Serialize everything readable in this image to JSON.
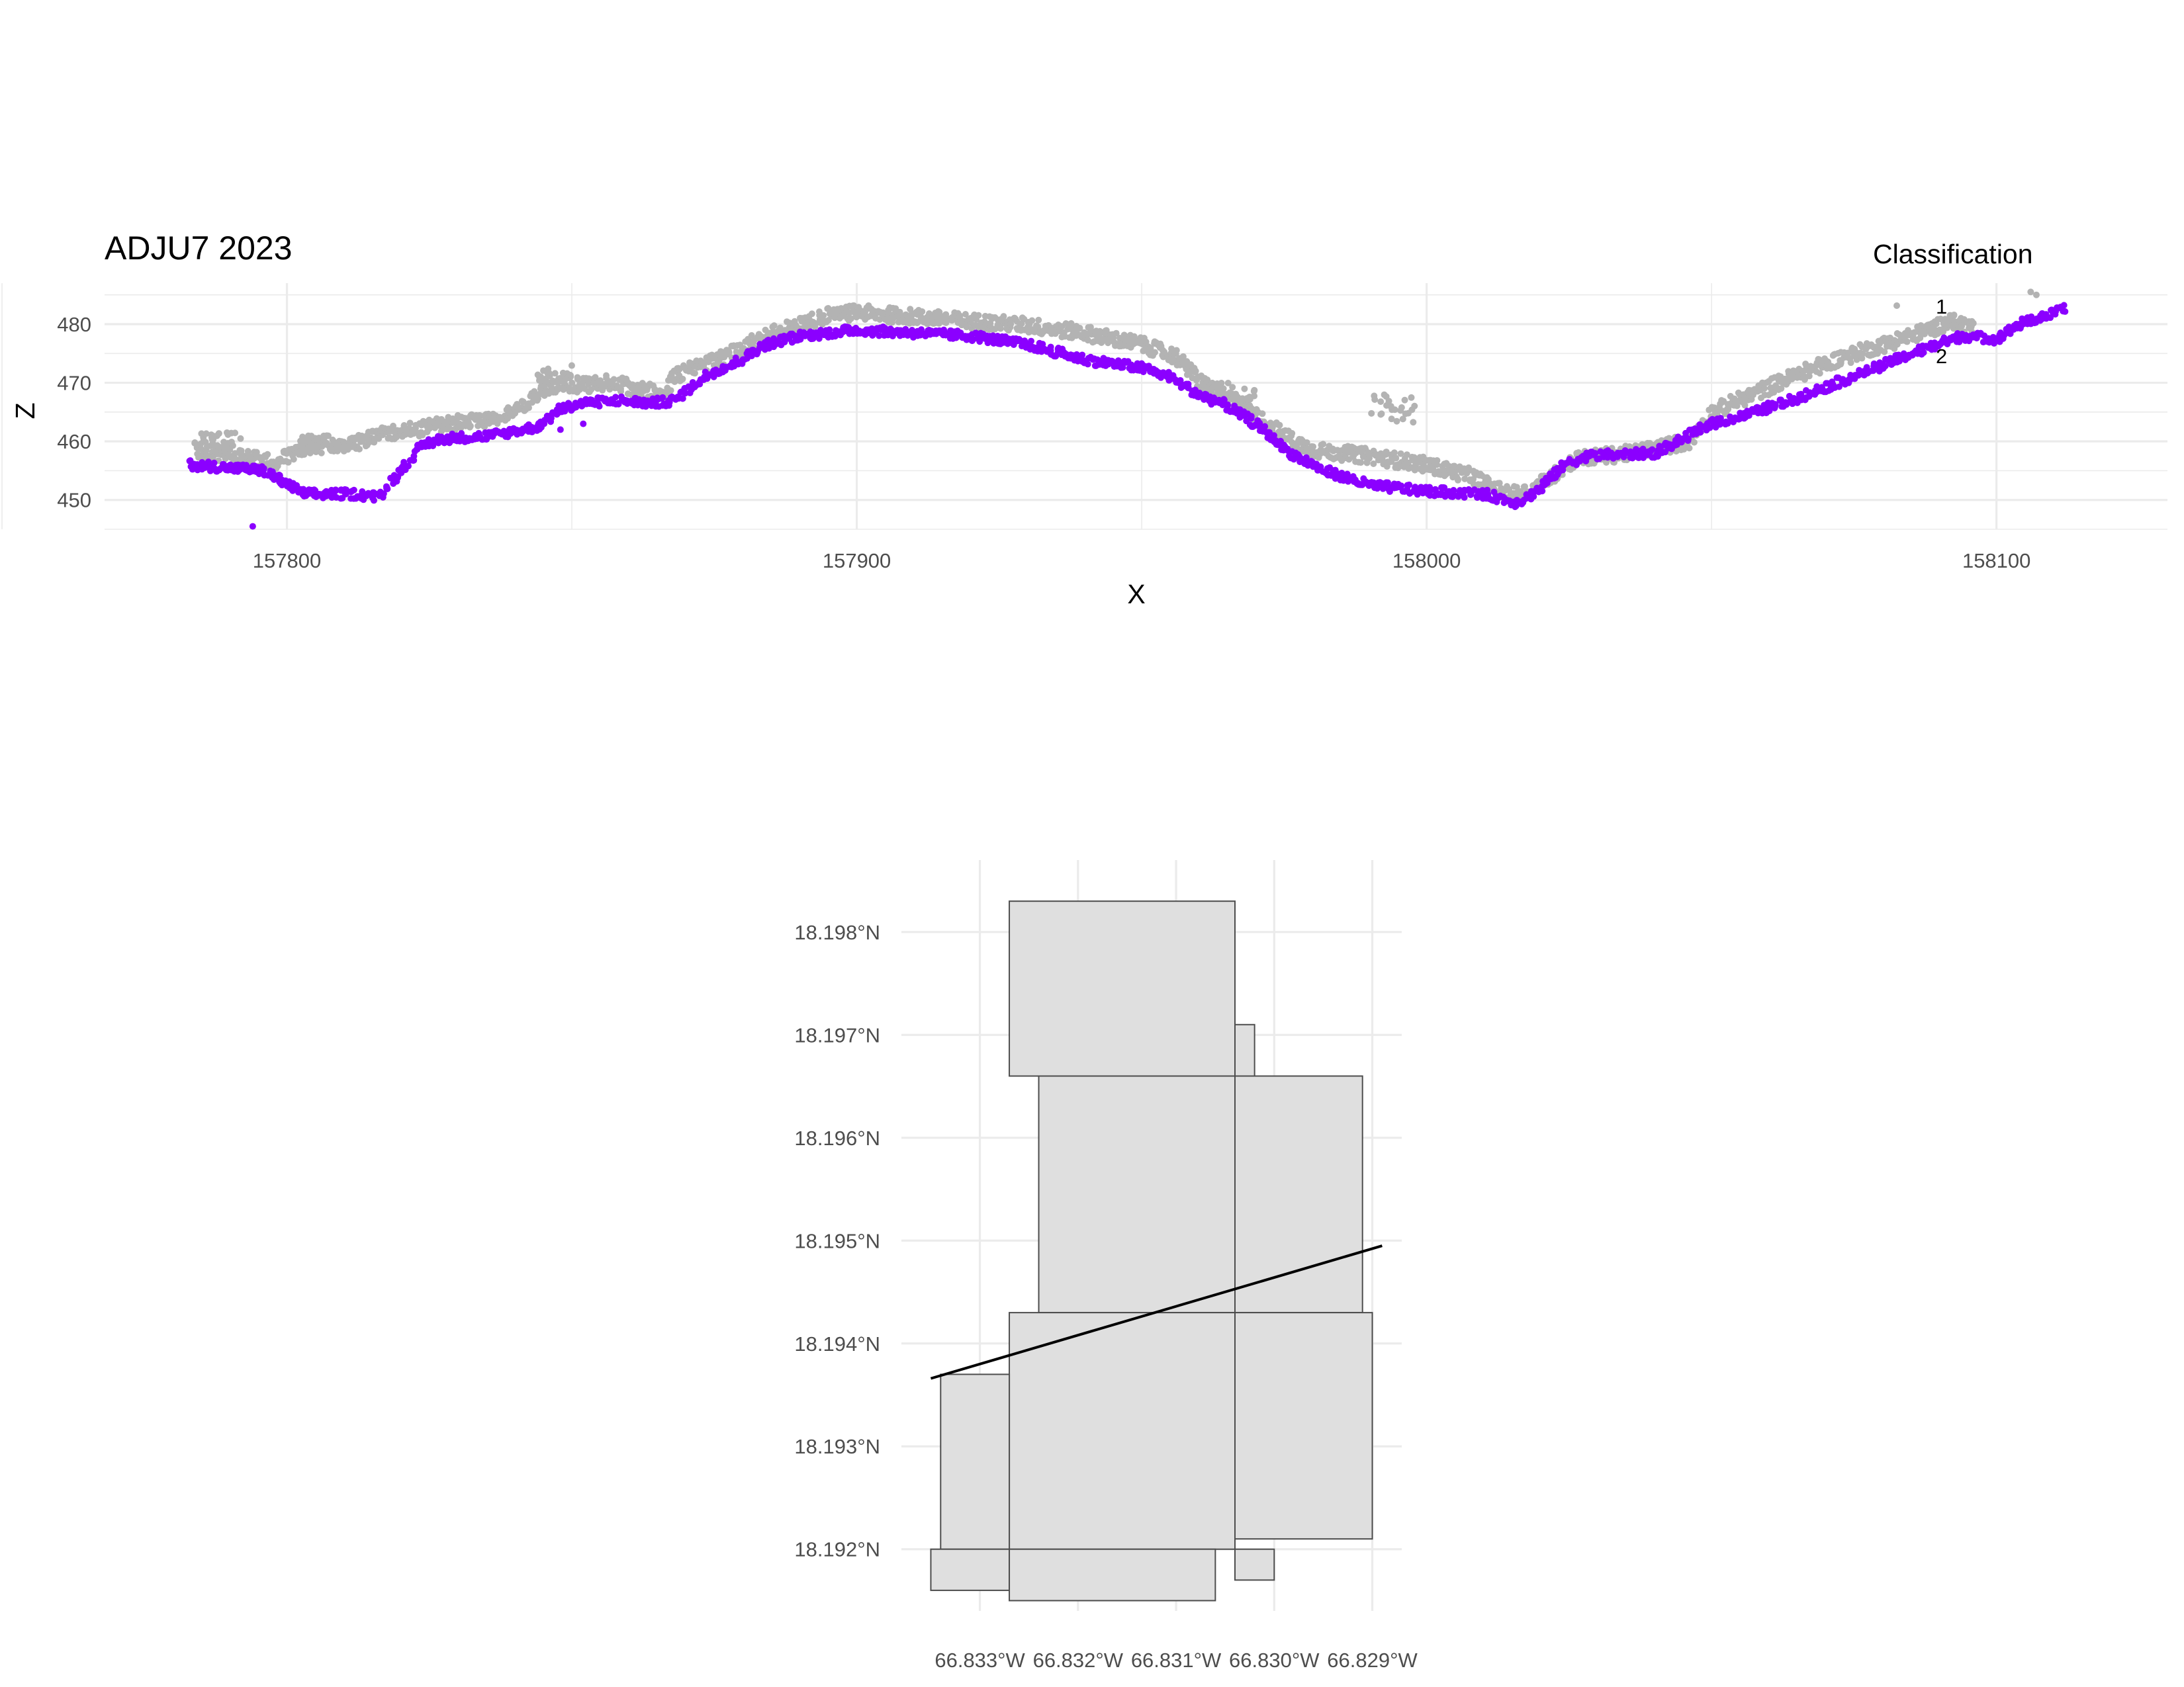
{
  "chart_data": [
    {
      "type": "scatter",
      "title": "ADJU7 2023",
      "xlabel": "X",
      "ylabel": "Z",
      "xlim": [
        157768,
        158130
      ],
      "ylim": [
        445,
        487
      ],
      "x_ticks": [
        157800,
        157900,
        158000,
        158100
      ],
      "y_ticks": [
        450,
        460,
        470,
        480
      ],
      "grid": true,
      "legend": {
        "title": "Classification",
        "position": "top-right",
        "entries": [
          {
            "label": "1",
            "color": "#b3b3b3"
          },
          {
            "label": "2",
            "color": "#8b00ff"
          }
        ]
      },
      "series": [
        {
          "name": "1",
          "color": "#b3b3b3",
          "profile": [
            [
              157784,
              458.5
            ],
            [
              157790,
              457.5
            ],
            [
              157794,
              457
            ],
            [
              157798,
              456.5
            ],
            [
              157806,
              460
            ],
            [
              157810,
              459
            ],
            [
              157818,
              461.5
            ],
            [
              157822,
              462
            ],
            [
              157828,
              463
            ],
            [
              157834,
              463.5
            ],
            [
              157840,
              465
            ],
            [
              157844,
              468
            ],
            [
              157848,
              470
            ],
            [
              157852,
              469.5
            ],
            [
              157856,
              470
            ],
            [
              157862,
              469
            ],
            [
              157866,
              468
            ],
            [
              157868,
              471
            ],
            [
              157872,
              473
            ],
            [
              157876,
              474
            ],
            [
              157880,
              476
            ],
            [
              157884,
              478
            ],
            [
              157890,
              480
            ],
            [
              157895,
              481.5
            ],
            [
              157900,
              482
            ],
            [
              157910,
              481.3
            ],
            [
              157920,
              480.5
            ],
            [
              157930,
              479.8
            ],
            [
              157940,
              478.5
            ],
            [
              157950,
              476.5
            ],
            [
              157956,
              474.5
            ],
            [
              157960,
              470.5
            ],
            [
              157964,
              468
            ],
            [
              157968,
              466
            ],
            [
              157972,
              463
            ],
            [
              157976,
              460.5
            ],
            [
              157980,
              458.5
            ],
            [
              157990,
              457.5
            ],
            [
              158000,
              456
            ],
            [
              158008,
              454
            ],
            [
              158014,
              451
            ],
            [
              158018,
              451.5
            ],
            [
              158022,
              454
            ],
            [
              158026,
              457
            ],
            [
              158036,
              458
            ],
            [
              158046,
              460
            ],
            [
              158050,
              465
            ],
            [
              158056,
              467.5
            ],
            [
              158064,
              471
            ],
            [
              158072,
              474
            ],
            [
              158080,
              476.5
            ],
            [
              158088,
              479
            ],
            [
              158092,
              480.5
            ],
            [
              158096,
              479.5
            ]
          ],
          "clusters": [
            {
              "x": [
                157785,
                157792
              ],
              "z": [
                459,
                461.5
              ]
            },
            {
              "x": [
                157802,
                157807
              ],
              "z": [
                458,
                461
              ]
            },
            {
              "x": [
                157844,
                157850
              ],
              "z": [
                470,
                473
              ]
            },
            {
              "x": [
                157963,
                157970
              ],
              "z": [
                467,
                470
              ]
            },
            {
              "x": [
                157990,
                157998
              ],
              "z": [
                463,
                468
              ]
            }
          ],
          "outliers": [
            [
              158106,
              485.5
            ],
            [
              158107,
              485
            ]
          ]
        },
        {
          "name": "2",
          "color": "#8b00ff",
          "profile": [
            [
              157783,
              456
            ],
            [
              157790,
              455.5
            ],
            [
              157796,
              455
            ],
            [
              157803,
              451
            ],
            [
              157812,
              451
            ],
            [
              157816,
              450.5
            ],
            [
              157820,
              455
            ],
            [
              157824,
              459.5
            ],
            [
              157828,
              460.5
            ],
            [
              157836,
              461
            ],
            [
              157844,
              462.5
            ],
            [
              157848,
              465.5
            ],
            [
              157852,
              466.5
            ],
            [
              157858,
              467
            ],
            [
              157864,
              466.5
            ],
            [
              157868,
              467
            ],
            [
              157874,
              471.5
            ],
            [
              157878,
              473
            ],
            [
              157884,
              476.5
            ],
            [
              157890,
              478
            ],
            [
              157900,
              479
            ],
            [
              157910,
              478.5
            ],
            [
              157920,
              478
            ],
            [
              157930,
              476.5
            ],
            [
              157940,
              474
            ],
            [
              157950,
              472.5
            ],
            [
              157955,
              471
            ],
            [
              157960,
              468
            ],
            [
              157964,
              466.5
            ],
            [
              157970,
              463
            ],
            [
              157976,
              458
            ],
            [
              157982,
              455
            ],
            [
              157990,
              452.5
            ],
            [
              158000,
              451.5
            ],
            [
              158010,
              451
            ],
            [
              158016,
              449.5
            ],
            [
              158020,
              452
            ],
            [
              158024,
              456
            ],
            [
              158028,
              457.5
            ],
            [
              158040,
              458
            ],
            [
              158046,
              461
            ],
            [
              158050,
              463
            ],
            [
              158056,
              464.5
            ],
            [
              158064,
              467
            ],
            [
              158072,
              470
            ],
            [
              158080,
              473
            ],
            [
              158088,
              476
            ],
            [
              158094,
              478
            ],
            [
              158100,
              477.5
            ],
            [
              158104,
              480
            ],
            [
              158112,
              482.5
            ]
          ],
          "outliers": [
            [
              157794,
              445.5
            ],
            [
              157852,
              463
            ],
            [
              157848,
              462
            ],
            [
              157992,
              452.5
            ]
          ]
        }
      ]
    },
    {
      "type": "map",
      "title": "",
      "lon_ticks": [
        "66.833°W",
        "66.832°W",
        "66.831°W",
        "66.830°W",
        "66.829°W"
      ],
      "lat_ticks": [
        "18.198°N",
        "18.197°N",
        "18.196°N",
        "18.195°N",
        "18.194°N",
        "18.193°N",
        "18.192°N"
      ],
      "lon_tick_values": [
        -66.833,
        -66.832,
        -66.831,
        -66.83,
        -66.829
      ],
      "lat_tick_values": [
        18.198,
        18.197,
        18.196,
        18.195,
        18.194,
        18.193,
        18.192
      ],
      "xlim": [
        -66.8338,
        -66.8287
      ],
      "ylim": [
        18.1914,
        18.1987
      ],
      "grid": true,
      "tile_fill": "#dfdfdf",
      "tile_stroke": "#4d4d4d",
      "tiles": [
        [
          -66.8327,
          -66.8304,
          18.1966,
          18.1983
        ],
        [
          -66.8304,
          -66.8302,
          18.1966,
          18.1971
        ],
        [
          -66.8324,
          -66.8304,
          18.1943,
          18.1966
        ],
        [
          -66.8304,
          -66.8291,
          18.1943,
          18.1966
        ],
        [
          -66.8327,
          -66.8304,
          18.192,
          18.1943
        ],
        [
          -66.8304,
          -66.829,
          18.1921,
          18.1943
        ],
        [
          -66.8334,
          -66.8327,
          18.192,
          18.1937
        ],
        [
          -66.8335,
          -66.8327,
          18.1916,
          18.192
        ],
        [
          -66.8327,
          -66.8306,
          18.1915,
          18.192
        ],
        [
          -66.8304,
          -66.83,
          18.1917,
          18.192
        ]
      ],
      "transect": [
        [
          -66.8335,
          18.19366
        ],
        [
          -66.8289,
          18.19495
        ]
      ]
    }
  ]
}
